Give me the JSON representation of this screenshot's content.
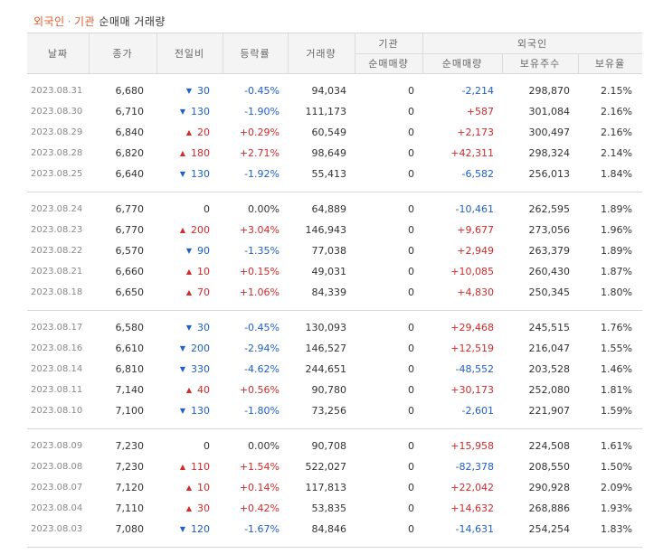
{
  "title": {
    "part1": "외국인",
    "separator": "·",
    "part2": "기관",
    "part3": "순매매 거래량"
  },
  "headers": {
    "date": "날짜",
    "close": "종가",
    "diff": "전일비",
    "rate": "등락률",
    "volume": "거래량",
    "institution": "기관",
    "institution_net": "순매매량",
    "foreign": "외국인",
    "foreign_net": "순매매량",
    "holdings": "보유주수",
    "holding_ratio": "보유율"
  },
  "colors": {
    "up": "#d32a2a",
    "down": "#1f5fc9",
    "title_accent": "#e0592a"
  },
  "groups": [
    [
      {
        "date": "2023.08.31",
        "close": "6,680",
        "dir": "down",
        "diff": "30",
        "rate": "-0.45%",
        "volume": "94,034",
        "inst": "0",
        "frg": "-2,214",
        "hold": "298,870",
        "ratio": "2.15%"
      },
      {
        "date": "2023.08.30",
        "close": "6,710",
        "dir": "down",
        "diff": "130",
        "rate": "-1.90%",
        "volume": "111,173",
        "inst": "0",
        "frg": "+587",
        "hold": "301,084",
        "ratio": "2.16%"
      },
      {
        "date": "2023.08.29",
        "close": "6,840",
        "dir": "up",
        "diff": "20",
        "rate": "+0.29%",
        "volume": "60,549",
        "inst": "0",
        "frg": "+2,173",
        "hold": "300,497",
        "ratio": "2.16%"
      },
      {
        "date": "2023.08.28",
        "close": "6,820",
        "dir": "up",
        "diff": "180",
        "rate": "+2.71%",
        "volume": "98,649",
        "inst": "0",
        "frg": "+42,311",
        "hold": "298,324",
        "ratio": "2.14%"
      },
      {
        "date": "2023.08.25",
        "close": "6,640",
        "dir": "down",
        "diff": "130",
        "rate": "-1.92%",
        "volume": "55,413",
        "inst": "0",
        "frg": "-6,582",
        "hold": "256,013",
        "ratio": "1.84%"
      }
    ],
    [
      {
        "date": "2023.08.24",
        "close": "6,770",
        "dir": "flat",
        "diff": "0",
        "rate": "0.00%",
        "volume": "64,889",
        "inst": "0",
        "frg": "-10,461",
        "hold": "262,595",
        "ratio": "1.89%"
      },
      {
        "date": "2023.08.23",
        "close": "6,770",
        "dir": "up",
        "diff": "200",
        "rate": "+3.04%",
        "volume": "146,943",
        "inst": "0",
        "frg": "+9,677",
        "hold": "273,056",
        "ratio": "1.96%"
      },
      {
        "date": "2023.08.22",
        "close": "6,570",
        "dir": "down",
        "diff": "90",
        "rate": "-1.35%",
        "volume": "77,038",
        "inst": "0",
        "frg": "+2,949",
        "hold": "263,379",
        "ratio": "1.89%"
      },
      {
        "date": "2023.08.21",
        "close": "6,660",
        "dir": "up",
        "diff": "10",
        "rate": "+0.15%",
        "volume": "49,031",
        "inst": "0",
        "frg": "+10,085",
        "hold": "260,430",
        "ratio": "1.87%"
      },
      {
        "date": "2023.08.18",
        "close": "6,650",
        "dir": "up",
        "diff": "70",
        "rate": "+1.06%",
        "volume": "84,339",
        "inst": "0",
        "frg": "+4,830",
        "hold": "250,345",
        "ratio": "1.80%"
      }
    ],
    [
      {
        "date": "2023.08.17",
        "close": "6,580",
        "dir": "down",
        "diff": "30",
        "rate": "-0.45%",
        "volume": "130,093",
        "inst": "0",
        "frg": "+29,468",
        "hold": "245,515",
        "ratio": "1.76%"
      },
      {
        "date": "2023.08.16",
        "close": "6,610",
        "dir": "down",
        "diff": "200",
        "rate": "-2.94%",
        "volume": "146,527",
        "inst": "0",
        "frg": "+12,519",
        "hold": "216,047",
        "ratio": "1.55%"
      },
      {
        "date": "2023.08.14",
        "close": "6,810",
        "dir": "down",
        "diff": "330",
        "rate": "-4.62%",
        "volume": "244,651",
        "inst": "0",
        "frg": "-48,552",
        "hold": "203,528",
        "ratio": "1.46%"
      },
      {
        "date": "2023.08.11",
        "close": "7,140",
        "dir": "up",
        "diff": "40",
        "rate": "+0.56%",
        "volume": "90,780",
        "inst": "0",
        "frg": "+30,173",
        "hold": "252,080",
        "ratio": "1.81%"
      },
      {
        "date": "2023.08.10",
        "close": "7,100",
        "dir": "down",
        "diff": "130",
        "rate": "-1.80%",
        "volume": "73,256",
        "inst": "0",
        "frg": "-2,601",
        "hold": "221,907",
        "ratio": "1.59%"
      }
    ],
    [
      {
        "date": "2023.08.09",
        "close": "7,230",
        "dir": "flat",
        "diff": "0",
        "rate": "0.00%",
        "volume": "90,708",
        "inst": "0",
        "frg": "+15,958",
        "hold": "224,508",
        "ratio": "1.61%"
      },
      {
        "date": "2023.08.08",
        "close": "7,230",
        "dir": "up",
        "diff": "110",
        "rate": "+1.54%",
        "volume": "522,027",
        "inst": "0",
        "frg": "-82,378",
        "hold": "208,550",
        "ratio": "1.50%"
      },
      {
        "date": "2023.08.07",
        "close": "7,120",
        "dir": "up",
        "diff": "10",
        "rate": "+0.14%",
        "volume": "117,813",
        "inst": "0",
        "frg": "+22,042",
        "hold": "290,928",
        "ratio": "2.09%"
      },
      {
        "date": "2023.08.04",
        "close": "7,110",
        "dir": "up",
        "diff": "30",
        "rate": "+0.42%",
        "volume": "53,835",
        "inst": "0",
        "frg": "+14,632",
        "hold": "268,886",
        "ratio": "1.93%"
      },
      {
        "date": "2023.08.03",
        "close": "7,080",
        "dir": "down",
        "diff": "120",
        "rate": "-1.67%",
        "volume": "84,846",
        "inst": "0",
        "frg": "-14,631",
        "hold": "254,254",
        "ratio": "1.83%"
      }
    ]
  ]
}
